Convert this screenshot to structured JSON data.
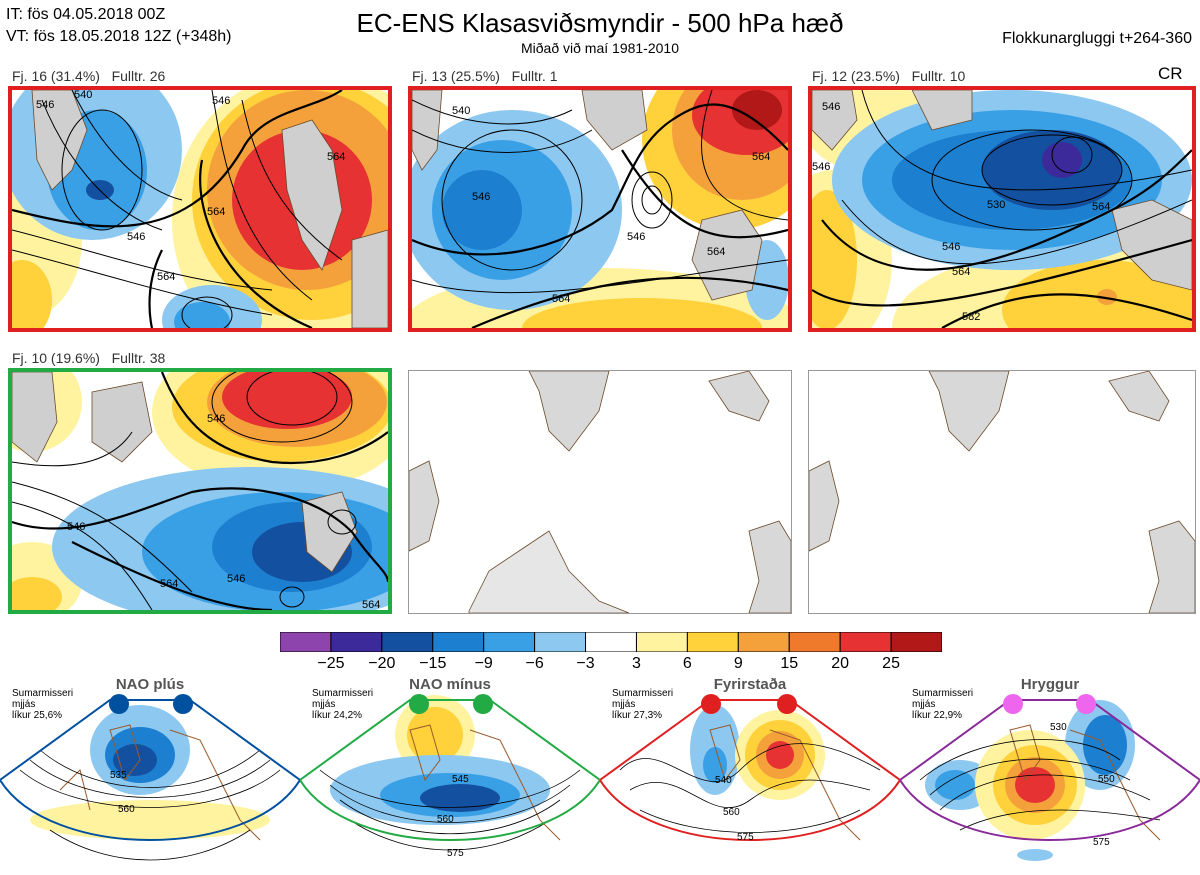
{
  "header": {
    "it_line": "IT: fös 04.05.2018 00Z",
    "vt_line": "VT: fös 18.05.2018 12Z  (+348h)",
    "title": "EC-ENS Klasasviðsmyndir - 500 hPa hæð",
    "subtitle": "Miðað við maí 1981-2010",
    "window": "Flokkunargluggi t+264-360",
    "cr": "CR"
  },
  "panels": [
    {
      "label": "Fj. 16 (31.4%)   Fulltr. 26",
      "border": "#e02020",
      "contours": [
        "546",
        "540",
        "546",
        "564",
        "564",
        "546",
        "564"
      ]
    },
    {
      "label": "Fj. 13 (25.5%)   Fulltr. 1",
      "border": "#e02020",
      "contours": [
        "540",
        "546",
        "564",
        "564",
        "546",
        "564"
      ]
    },
    {
      "label": "Fj. 12 (23.5%)   Fulltr. 10",
      "border": "#e02020",
      "contours": [
        "546",
        "546",
        "530",
        "546",
        "564",
        "564",
        "582"
      ]
    },
    {
      "label": "Fj. 10 (19.6%)   Fulltr. 38",
      "border": "#22aa44",
      "contours": [
        "546",
        "546",
        "564",
        "546",
        "564"
      ]
    }
  ],
  "colorbar": {
    "colors": [
      "#8e44ad",
      "#3c2a9b",
      "#1450a0",
      "#1c7fd0",
      "#3aa0e6",
      "#8cc8f0",
      "#ffffff",
      "#fff3a0",
      "#ffd23c",
      "#f4a13c",
      "#ef7a2c",
      "#e63232",
      "#b21818"
    ],
    "ticks": [
      "−25",
      "−20",
      "−15",
      "−9",
      "−6",
      "−3",
      "3",
      "6",
      "9",
      "15",
      "20",
      "25"
    ]
  },
  "regimes": [
    {
      "name": "NAO plús",
      "color": "#0050a0",
      "dot": "#0050a0",
      "note": [
        "Sumarmisseri",
        "mjjás",
        "líkur 25,6%"
      ],
      "contours": [
        "535",
        "560"
      ]
    },
    {
      "name": "NAO mínus",
      "color": "#22aa44",
      "dot": "#22aa44",
      "note": [
        "Sumarmisseri",
        "mjjás",
        "líkur 24,2%"
      ],
      "contours": [
        "545",
        "560",
        "575"
      ]
    },
    {
      "name": "Fyrirstaða",
      "color": "#e02020",
      "dot": "#e02020",
      "note": [
        "Sumarmisseri",
        "mjjás",
        "líkur 27,3%"
      ],
      "contours": [
        "540",
        "560",
        "575"
      ]
    },
    {
      "name": "Hryggur",
      "color": "#8a2a9a",
      "dot": "#ee66ee",
      "note": [
        "Sumarmisseri",
        "mjjás",
        "líkur 22,9%"
      ],
      "contours": [
        "530",
        "550",
        "575"
      ]
    }
  ]
}
